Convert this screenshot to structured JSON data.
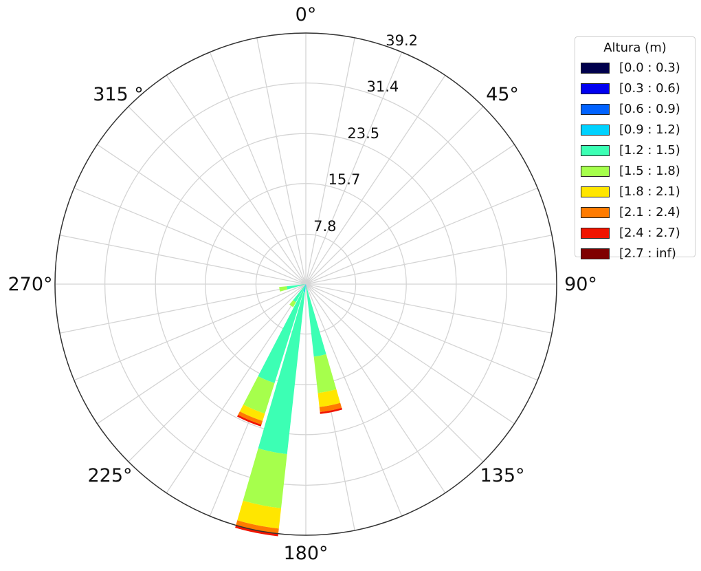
{
  "chart_data": {
    "type": "windrose",
    "legend_title": "Altura (m)",
    "legend_placement": "right",
    "direction_labels": [
      "0°",
      "45°",
      "90°",
      "135°",
      "180°",
      "225°",
      "270°",
      "315 °"
    ],
    "radial_ticks": [
      7.8,
      15.7,
      23.5,
      31.4,
      39.2
    ],
    "radial_tick_labels": [
      "7.8",
      "15.7",
      "23.5",
      "31.4",
      "39.2"
    ],
    "rmax": 39.2,
    "grid": true,
    "bins": [
      {
        "label": "[0.0 : 0.3)",
        "color": "#00004c"
      },
      {
        "label": "[0.3 : 0.6)",
        "color": "#0000f0"
      },
      {
        "label": "[0.6 : 0.9)",
        "color": "#0062ff"
      },
      {
        "label": "[0.9 : 1.2)",
        "color": "#00d2ff"
      },
      {
        "label": "[1.2 : 1.5)",
        "color": "#3cffb4"
      },
      {
        "label": "[1.5 : 1.8)",
        "color": "#a6ff4c"
      },
      {
        "label": "[1.8 : 2.1)",
        "color": "#ffe600"
      },
      {
        "label": "[2.1 : 2.4)",
        "color": "#ff7b00"
      },
      {
        "label": "[2.4 : 2.7)",
        "color": "#f01400"
      },
      {
        "label": "[2.7 : inf)",
        "color": "#7f0000"
      }
    ],
    "direction_sector_width_deg": 11.25,
    "sectors": [
      {
        "direction": 168.75,
        "values": [
          0,
          0,
          0,
          0.4,
          11.0,
          5.7,
          2.2,
          0.8,
          0.3,
          0
        ]
      },
      {
        "direction": 191.25,
        "values": [
          0,
          0,
          0,
          1.2,
          25.5,
          8.5,
          3.2,
          0.8,
          0.4,
          0
        ]
      },
      {
        "direction": 202.5,
        "values": [
          0,
          0,
          0,
          0.4,
          15.8,
          5.0,
          1.2,
          0.6,
          0.3,
          0
        ]
      },
      {
        "direction": 213.75,
        "values": [
          0,
          0,
          0,
          0.2,
          3.0,
          0.9,
          0,
          0,
          0,
          0
        ]
      },
      {
        "direction": 258.75,
        "values": [
          0,
          0,
          0,
          0,
          3.0,
          1.2,
          0,
          0,
          0,
          0
        ]
      }
    ]
  }
}
